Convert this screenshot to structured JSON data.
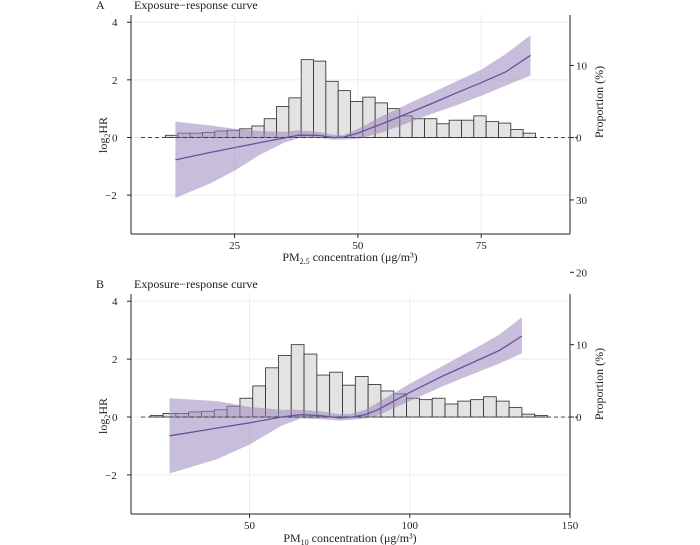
{
  "chart_data": [
    {
      "panel_label": "A",
      "type": "line",
      "title": "Exposure−response curve",
      "xlabel": "PM",
      "xlabel_sub": "2.5",
      "xlabel_tail": " concentration (μg/m³)",
      "ylabel": "log",
      "ylabel_sub": "2",
      "ylabel_tail": "HR",
      "y2label": "Proportion (%)",
      "xlim": [
        4,
        93
      ],
      "ylim": [
        -3.35,
        4.25
      ],
      "y2lim_at_zero": 0,
      "y2_units_per_y": 0.25,
      "xticks": [
        25,
        50,
        75
      ],
      "yticks": [
        -2,
        0,
        2,
        4
      ],
      "y2ticks": [
        0,
        10,
        20,
        30
      ],
      "grid": true,
      "reference_line_y": 0,
      "curve_color": "#6a5298",
      "band_color": "#9a88bd",
      "histogram_fill": "#e3e3e3",
      "series": [
        {
          "role": "estimate",
          "x": [
            13,
            20,
            25,
            30,
            35,
            38,
            42,
            45,
            47,
            50,
            55,
            60,
            65,
            70,
            75,
            80,
            85
          ],
          "y": [
            -0.78,
            -0.52,
            -0.35,
            -0.18,
            -0.02,
            0.08,
            0.07,
            0.0,
            0.01,
            0.15,
            0.48,
            0.83,
            1.18,
            1.55,
            1.9,
            2.28,
            2.85
          ]
        },
        {
          "role": "ci_lower",
          "x": [
            13,
            20,
            25,
            30,
            35,
            38,
            42,
            45,
            47,
            50,
            55,
            60,
            65,
            70,
            75,
            80,
            85
          ],
          "y": [
            -2.1,
            -1.6,
            -1.15,
            -0.62,
            -0.18,
            -0.03,
            -0.02,
            -0.08,
            -0.07,
            -0.05,
            0.18,
            0.5,
            0.82,
            1.12,
            1.45,
            1.8,
            2.15
          ]
        },
        {
          "role": "ci_upper",
          "x": [
            13,
            20,
            25,
            30,
            35,
            38,
            42,
            45,
            47,
            50,
            55,
            60,
            65,
            70,
            75,
            80,
            85
          ],
          "y": [
            0.55,
            0.42,
            0.3,
            0.22,
            0.2,
            0.25,
            0.2,
            0.1,
            0.08,
            0.3,
            0.75,
            1.15,
            1.55,
            1.95,
            2.35,
            2.9,
            3.55
          ]
        }
      ],
      "histogram": {
        "bin_starts": [
          11,
          13.5,
          16,
          18.5,
          21,
          23.5,
          26,
          28.5,
          31,
          33.5,
          36,
          38.5,
          41,
          43.5,
          46,
          48.5,
          51,
          53.5,
          56,
          58.5,
          61,
          63.5,
          66,
          68.5,
          71,
          73.5,
          76,
          78.5,
          81,
          83.5
        ],
        "bin_width": 2.5,
        "proportion": [
          0.3,
          0.6,
          0.6,
          0.7,
          0.9,
          1.0,
          1.2,
          1.6,
          2.6,
          4.3,
          5.5,
          10.8,
          10.6,
          7.8,
          6.5,
          5.0,
          5.6,
          4.8,
          4.0,
          3.0,
          2.6,
          2.6,
          1.9,
          2.4,
          2.4,
          3.0,
          2.2,
          2.0,
          1.1,
          0.6
        ]
      }
    },
    {
      "panel_label": "B",
      "type": "line",
      "title": "Exposure−response curve",
      "xlabel": "PM",
      "xlabel_sub": "10",
      "xlabel_tail": " concentration (μg/m³)",
      "ylabel": "log",
      "ylabel_sub": "2",
      "ylabel_tail": "HR",
      "y2label": "Proportion (%)",
      "xlim": [
        13,
        150
      ],
      "ylim": [
        -3.35,
        4.25
      ],
      "y2lim_at_zero": 0,
      "y2_units_per_y": 0.25,
      "xticks": [
        50,
        100,
        150
      ],
      "yticks": [
        -2,
        0,
        2,
        4
      ],
      "y2ticks": [
        0,
        10,
        20,
        30
      ],
      "grid": true,
      "reference_line_y": 0,
      "curve_color": "#6a5298",
      "band_color": "#9a88bd",
      "histogram_fill": "#e3e3e3",
      "series": [
        {
          "role": "estimate",
          "x": [
            25,
            40,
            50,
            60,
            66,
            72,
            78,
            82,
            86,
            90,
            100,
            110,
            120,
            128,
            135
          ],
          "y": [
            -0.65,
            -0.38,
            -0.2,
            0.0,
            0.08,
            0.05,
            -0.03,
            0.0,
            0.08,
            0.25,
            0.85,
            1.4,
            1.9,
            2.3,
            2.8
          ]
        },
        {
          "role": "ci_lower",
          "x": [
            25,
            40,
            50,
            60,
            66,
            72,
            78,
            82,
            86,
            90,
            100,
            110,
            120,
            128,
            135
          ],
          "y": [
            -1.95,
            -1.45,
            -0.95,
            -0.3,
            -0.05,
            -0.08,
            -0.12,
            -0.1,
            -0.05,
            0.05,
            0.55,
            1.05,
            1.5,
            1.85,
            2.2
          ]
        },
        {
          "role": "ci_upper",
          "x": [
            25,
            40,
            50,
            60,
            66,
            72,
            78,
            82,
            86,
            90,
            100,
            110,
            120,
            128,
            135
          ],
          "y": [
            0.65,
            0.55,
            0.35,
            0.25,
            0.25,
            0.2,
            0.1,
            0.12,
            0.25,
            0.5,
            1.15,
            1.75,
            2.35,
            2.85,
            3.45
          ]
        }
      ],
      "histogram": {
        "bin_starts": [
          19,
          23,
          27,
          31,
          35,
          39,
          43,
          47,
          51,
          55,
          59,
          63,
          67,
          71,
          75,
          79,
          83,
          87,
          91,
          95,
          99,
          103,
          107,
          111,
          115,
          119,
          123,
          127,
          131,
          135,
          139
        ],
        "bin_width": 4,
        "proportion": [
          0.2,
          0.5,
          0.5,
          0.7,
          0.8,
          1.0,
          1.5,
          2.6,
          4.3,
          6.8,
          8.5,
          10.0,
          8.7,
          5.8,
          6.2,
          4.4,
          5.6,
          4.5,
          3.6,
          3.2,
          2.6,
          2.4,
          2.6,
          1.8,
          2.2,
          2.4,
          2.8,
          2.2,
          1.3,
          0.4,
          0.2
        ]
      }
    }
  ]
}
